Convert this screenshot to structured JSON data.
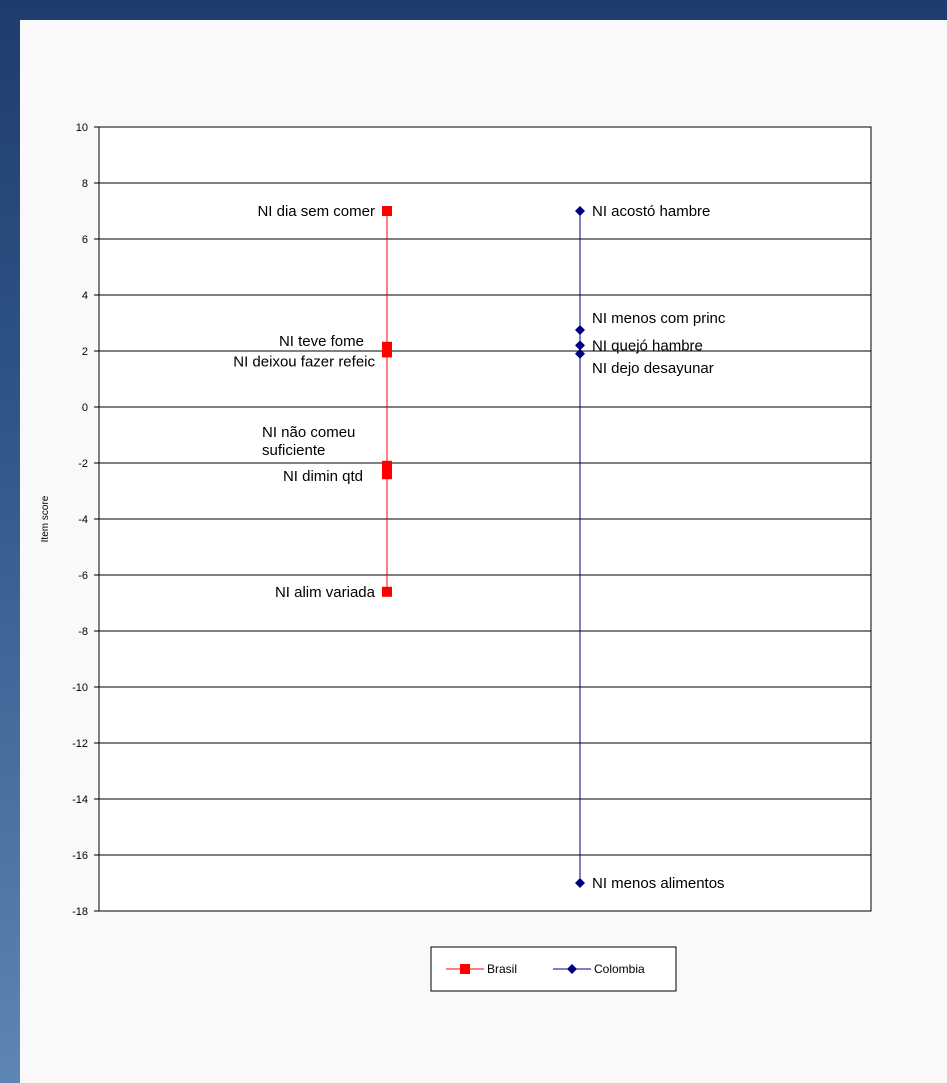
{
  "chart_data": {
    "type": "scatter",
    "title": "",
    "xlabel": "",
    "ylabel": "Item score",
    "ylim": [
      -18,
      10
    ],
    "ytick_step": 2,
    "grid": true,
    "legend_position": "bottom",
    "series": [
      {
        "name": "Brasil",
        "color": "#ff0000",
        "marker": "square",
        "x": 1,
        "points": [
          {
            "label": "NI dia sem comer",
            "y": 7.0
          },
          {
            "label": "NI teve fome",
            "y": 2.15
          },
          {
            "label": "NI deixou fazer refeic",
            "y": 1.95
          },
          {
            "label": "NI não comeu suficiente",
            "y": -2.1
          },
          {
            "label": "NI dimin qtd",
            "y": -2.4
          },
          {
            "label": "NI alim variada",
            "y": -6.6
          }
        ]
      },
      {
        "name": "Colombia",
        "color": "#000080",
        "marker": "diamond",
        "x": 2,
        "points": [
          {
            "label": "NI acostó hambre",
            "y": 7.0
          },
          {
            "label": "NI menos com princ",
            "y": 2.75
          },
          {
            "label": "NI quejó hambre",
            "y": 2.2
          },
          {
            "label": "NI dejo desayunar",
            "y": 1.9
          },
          {
            "label": "NI menos alimentos",
            "y": -17.0
          }
        ]
      }
    ]
  }
}
